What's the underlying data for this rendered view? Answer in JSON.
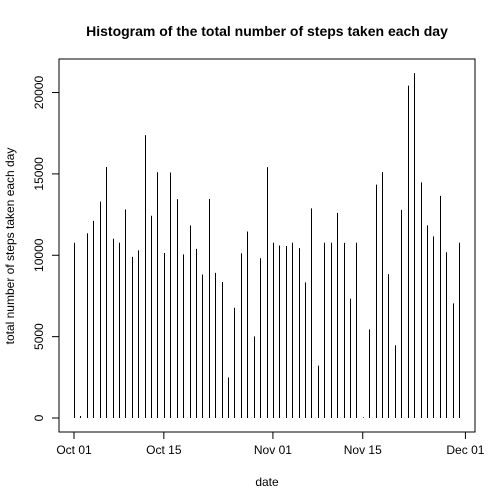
{
  "chart_data": {
    "type": "bar",
    "title": "Histogram of the total number of steps taken each day",
    "xlabel": "date",
    "ylabel": "total number of steps taken each day",
    "x_ticks": [
      "Oct 01",
      "Oct 15",
      "Nov 01",
      "Nov 15",
      "Dec 01"
    ],
    "y_ticks": [
      "0",
      "5000",
      "10000",
      "15000",
      "20000"
    ],
    "y_tick_values": [
      0,
      5000,
      10000,
      15000,
      20000
    ],
    "ylim": [
      0,
      21200
    ],
    "grid": false,
    "series": [
      {
        "x": [
          "2012-10-01",
          "2012-10-02",
          "2012-10-03",
          "2012-10-04",
          "2012-10-05",
          "2012-10-06",
          "2012-10-07",
          "2012-10-08",
          "2012-10-09",
          "2012-10-10",
          "2012-10-11",
          "2012-10-12",
          "2012-10-13",
          "2012-10-14",
          "2012-10-15",
          "2012-10-16",
          "2012-10-17",
          "2012-10-18",
          "2012-10-19",
          "2012-10-20",
          "2012-10-21",
          "2012-10-22",
          "2012-10-23",
          "2012-10-24",
          "2012-10-25",
          "2012-10-26",
          "2012-10-27",
          "2012-10-28",
          "2012-10-29",
          "2012-10-30",
          "2012-10-31",
          "2012-11-01",
          "2012-11-02",
          "2012-11-03",
          "2012-11-04",
          "2012-11-05",
          "2012-11-06",
          "2012-11-07",
          "2012-11-08",
          "2012-11-09",
          "2012-11-10",
          "2012-11-11",
          "2012-11-12",
          "2012-11-13",
          "2012-11-14",
          "2012-11-15",
          "2012-11-16",
          "2012-11-17",
          "2012-11-18",
          "2012-11-19",
          "2012-11-20",
          "2012-11-21",
          "2012-11-22",
          "2012-11-23",
          "2012-11-24",
          "2012-11-25",
          "2012-11-26",
          "2012-11-27",
          "2012-11-28",
          "2012-11-29",
          "2012-11-30"
        ],
        "values": [
          10766,
          126,
          11352,
          12116,
          13294,
          15420,
          11015,
          10766,
          12811,
          9900,
          10304,
          17382,
          12426,
          15098,
          10139,
          15084,
          13452,
          10056,
          11829,
          10395,
          8821,
          13460,
          8918,
          8355,
          2492,
          6778,
          10119,
          11458,
          5018,
          9819,
          15414,
          10766,
          10600,
          10571,
          10766,
          10439,
          8334,
          12883,
          3219,
          10766,
          10766,
          12608,
          10765,
          7336,
          10766,
          41,
          5441,
          14339,
          15110,
          8841,
          4472,
          12787,
          20427,
          21194,
          14478,
          11834,
          11162,
          13646,
          10183,
          7047,
          10766
        ]
      }
    ]
  }
}
